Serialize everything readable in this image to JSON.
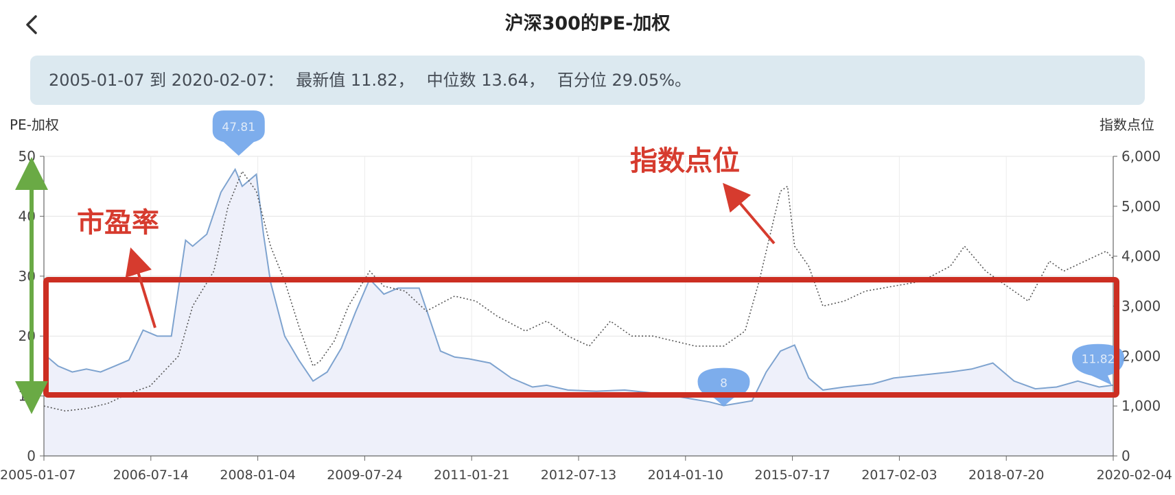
{
  "header": {
    "title": "沪深300的PE-加权"
  },
  "summary": {
    "range": "2005-01-07 到 2020-02-07：",
    "latest": "最新值 11.82，",
    "median": "中位数 13.64，",
    "percentile": "百分位 29.05%。"
  },
  "colors": {
    "pe_line": "#7ea3cf",
    "pe_fill": "#eef0fa",
    "index_line": "#555555",
    "annotation": "#d63b2e",
    "arrow_green": "#6aaa45",
    "marker": "#6fa4ea"
  },
  "chart_data": {
    "type": "line",
    "left_axis_label": "PE-加权",
    "right_axis_label": "指数点位",
    "left_ylim": [
      0,
      50
    ],
    "left_ticks": [
      "0",
      "10",
      "20",
      "30",
      "40",
      "50"
    ],
    "right_ylim": [
      0,
      6000
    ],
    "right_ticks": [
      "0",
      "1,000",
      "2,000",
      "3,000",
      "4,000",
      "5,000",
      "6,000"
    ],
    "x_ticks": [
      "2005-01-07",
      "2006-07-14",
      "2008-01-04",
      "2009-07-24",
      "2011-01-21",
      "2012-07-13",
      "2014-01-10",
      "2015-07-17",
      "2017-02-03",
      "2018-07-20",
      "2020-02-04"
    ],
    "grid": true,
    "series": [
      {
        "axis": "left",
        "style": "solid",
        "x": [
          2005.0,
          2005.2,
          2005.4,
          2005.6,
          2005.8,
          2006.0,
          2006.2,
          2006.4,
          2006.6,
          2006.8,
          2007.0,
          2007.1,
          2007.3,
          2007.5,
          2007.7,
          2007.8,
          2008.0,
          2008.1,
          2008.2,
          2008.4,
          2008.6,
          2008.8,
          2009.0,
          2009.2,
          2009.4,
          2009.6,
          2009.8,
          2010.0,
          2010.3,
          2010.6,
          2010.8,
          2011.0,
          2011.3,
          2011.6,
          2011.9,
          2012.1,
          2012.4,
          2012.8,
          2013.2,
          2013.6,
          2014.0,
          2014.4,
          2014.6,
          2014.8,
          2015.0,
          2015.2,
          2015.4,
          2015.6,
          2015.8,
          2016.0,
          2016.3,
          2016.7,
          2017.0,
          2017.4,
          2017.8,
          2018.1,
          2018.4,
          2018.7,
          2019.0,
          2019.3,
          2019.6,
          2019.9,
          2020.1
        ],
        "y": [
          17,
          15,
          14,
          14.5,
          14,
          15,
          16,
          21,
          20,
          20,
          36,
          35,
          37,
          44,
          47.81,
          45,
          47,
          37,
          29,
          20,
          16,
          12.5,
          14,
          18,
          24,
          29.5,
          27,
          28,
          28,
          17.5,
          16.5,
          16.2,
          15.5,
          13,
          11.5,
          11.8,
          11,
          10.8,
          11,
          10.5,
          9.8,
          9,
          8.4,
          8.8,
          9.2,
          14,
          17.5,
          18.5,
          13,
          11,
          11.5,
          12,
          13,
          13.5,
          14,
          14.5,
          15.5,
          12.5,
          11.2,
          11.5,
          12.5,
          11.5,
          11.82
        ]
      },
      {
        "axis": "right",
        "style": "dotted",
        "x": [
          2005.0,
          2005.3,
          2005.6,
          2005.9,
          2006.2,
          2006.5,
          2006.9,
          2007.1,
          2007.4,
          2007.6,
          2007.8,
          2008.0,
          2008.2,
          2008.4,
          2008.6,
          2008.8,
          2008.9,
          2009.1,
          2009.3,
          2009.6,
          2009.8,
          2010.1,
          2010.4,
          2010.8,
          2011.1,
          2011.4,
          2011.8,
          2012.1,
          2012.4,
          2012.7,
          2013.0,
          2013.3,
          2013.6,
          2013.9,
          2014.2,
          2014.6,
          2014.9,
          2015.1,
          2015.4,
          2015.5,
          2015.6,
          2015.8,
          2016.0,
          2016.3,
          2016.6,
          2017.0,
          2017.4,
          2017.8,
          2018.0,
          2018.3,
          2018.6,
          2018.9,
          2019.2,
          2019.4,
          2019.7,
          2020.0,
          2020.1
        ],
        "y": [
          1000,
          900,
          950,
          1050,
          1250,
          1400,
          2000,
          3000,
          3700,
          5000,
          5700,
          5300,
          4200,
          3500,
          2600,
          1800,
          1900,
          2300,
          3000,
          3700,
          3400,
          3300,
          2900,
          3200,
          3100,
          2800,
          2500,
          2700,
          2400,
          2200,
          2700,
          2400,
          2400,
          2300,
          2200,
          2200,
          2500,
          3500,
          5300,
          5400,
          4200,
          3800,
          3000,
          3100,
          3300,
          3400,
          3500,
          3800,
          4200,
          3700,
          3400,
          3100,
          3900,
          3700,
          3900,
          4100,
          3950
        ]
      }
    ],
    "markers": [
      {
        "label": "47.81",
        "x": 2007.75,
        "y": 47.81,
        "axis": "left"
      },
      {
        "label": "8",
        "x": 2014.6,
        "y": 8.4,
        "axis": "left"
      },
      {
        "label": "11.82",
        "x": 2020.1,
        "y": 11.82,
        "axis": "left"
      }
    ]
  },
  "annotations": {
    "pe_label": "市盈率",
    "index_label": "指数点位"
  }
}
